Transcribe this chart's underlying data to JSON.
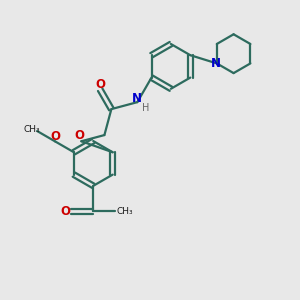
{
  "bg_color": "#e8e8e8",
  "bond_color": "#2d6b5e",
  "N_color": "#0000cc",
  "O_color": "#cc0000",
  "C_color": "#1a1a1a",
  "line_width": 1.6,
  "fig_size": [
    3.0,
    3.0
  ],
  "dpi": 100,
  "xlim": [
    0,
    10
  ],
  "ylim": [
    0,
    10
  ]
}
